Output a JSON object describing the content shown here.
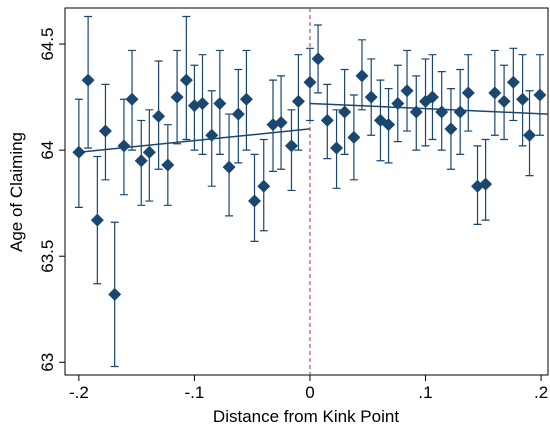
{
  "chart_data": {
    "type": "scatter",
    "xlabel": "Distance from Kink Point",
    "ylabel": "Age of Claiming",
    "color": "#1a476f",
    "xlim": [
      -0.212,
      0.206
    ],
    "ylim": [
      62.94,
      64.67
    ],
    "xticks": [
      {
        "value": -0.2,
        "label": "-.2"
      },
      {
        "value": -0.1,
        "label": "-.1"
      },
      0,
      {
        "value": 0.1,
        "label": ".1"
      },
      {
        "value": 0.2,
        "label": ".2"
      }
    ],
    "yticks": [
      63,
      63.5,
      64,
      64.5
    ],
    "x": [
      -0.2,
      -0.192,
      -0.184,
      -0.177,
      -0.169,
      -0.161,
      -0.154,
      -0.146,
      -0.139,
      -0.131,
      -0.123,
      -0.115,
      -0.107,
      -0.1,
      -0.093,
      -0.085,
      -0.078,
      -0.07,
      -0.062,
      -0.055,
      -0.048,
      -0.04,
      -0.032,
      -0.025,
      -0.016,
      -0.01,
      0,
      0.007,
      0.015,
      0.023,
      0.03,
      0.038,
      0.045,
      0.053,
      0.061,
      0.068,
      0.076,
      0.084,
      0.092,
      0.1,
      0.106,
      0.114,
      0.122,
      0.13,
      0.137,
      0.145,
      0.152,
      0.16,
      0.168,
      0.176,
      0.184,
      0.19,
      0.199
    ],
    "values": [
      63.99,
      64.33,
      63.67,
      64.09,
      63.32,
      64.02,
      64.24,
      63.95,
      63.99,
      64.16,
      63.93,
      64.25,
      64.33,
      64.21,
      64.22,
      64.07,
      64.22,
      63.92,
      64.17,
      64.24,
      63.76,
      63.83,
      64.12,
      64.13,
      64.02,
      64.23,
      64.32,
      64.43,
      64.14,
      64.01,
      64.18,
      64.06,
      64.35,
      64.25,
      64.14,
      64.12,
      64.22,
      64.28,
      64.18,
      64.23,
      64.25,
      64.18,
      64.1,
      64.18,
      64.27,
      63.83,
      63.84,
      64.27,
      64.23,
      64.32,
      64.24,
      64.07,
      64.26
    ],
    "ci_upper": [
      64.24,
      64.63,
      63.97,
      64.31,
      63.66,
      64.24,
      64.47,
      64.14,
      64.19,
      64.42,
      64.12,
      64.47,
      64.63,
      64.4,
      64.45,
      64.28,
      64.47,
      64.17,
      64.38,
      64.47,
      63.98,
      64.05,
      64.33,
      64.35,
      64.19,
      64.45,
      64.48,
      64.59,
      64.31,
      64.19,
      64.38,
      64.26,
      64.52,
      64.43,
      64.33,
      64.29,
      64.4,
      64.47,
      64.35,
      64.43,
      64.45,
      64.37,
      64.29,
      64.38,
      64.45,
      64.02,
      64.05,
      64.47,
      64.4,
      64.48,
      64.45,
      64.28,
      64.45
    ],
    "ci_lower": [
      63.73,
      64.01,
      63.37,
      63.86,
      62.98,
      63.79,
      64.0,
      63.74,
      63.76,
      63.91,
      63.74,
      64.03,
      64.05,
      64.0,
      63.98,
      63.83,
      63.98,
      63.69,
      63.94,
      64.0,
      63.57,
      63.62,
      63.9,
      63.91,
      63.81,
      64.0,
      64.14,
      64.27,
      63.96,
      63.82,
      63.98,
      63.86,
      64.19,
      64.07,
      63.95,
      63.94,
      64.04,
      64.09,
      64.0,
      64.02,
      64.05,
      64.0,
      63.91,
      63.98,
      64.09,
      63.65,
      63.67,
      64.07,
      64.05,
      64.14,
      64.02,
      63.88,
      64.07
    ],
    "fit_lines": [
      {
        "x": [
          -0.2,
          0
        ],
        "values": [
          63.99,
          64.1
        ]
      },
      {
        "x": [
          0,
          0.206
        ],
        "values": [
          64.22,
          64.17
        ]
      }
    ],
    "reference_line": {
      "x": 0,
      "color": "#a0306a",
      "dashed": true
    }
  }
}
